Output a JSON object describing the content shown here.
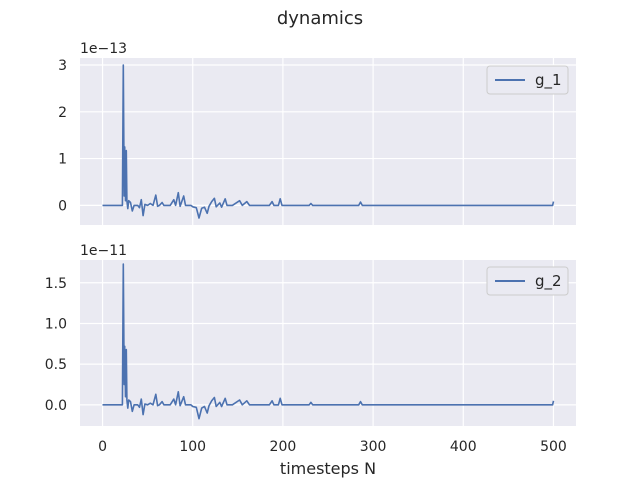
{
  "figure": {
    "title": "dynamics",
    "xlabel": "timesteps N"
  },
  "chart_data": [
    {
      "type": "line",
      "ylabel": "",
      "offset_label": "1e−13",
      "xlim": [
        -25,
        525
      ],
      "ylim": [
        -0.42,
        3.15
      ],
      "x_ticks": [
        0,
        100,
        200,
        300,
        400,
        500
      ],
      "x_tick_labels": [
        "0",
        "100",
        "200",
        "300",
        "400",
        "500"
      ],
      "y_ticks": [
        0,
        1,
        2,
        3
      ],
      "y_tick_labels": [
        "0",
        "1",
        "2",
        "3"
      ],
      "grid": true,
      "legend_position": "top-right",
      "series": [
        {
          "name": "g_1",
          "color": "#4c72b0",
          "points": [
            [
              0,
              0
            ],
            [
              22,
              0
            ],
            [
              23,
              3.0
            ],
            [
              24,
              0.2
            ],
            [
              24.6,
              1.25
            ],
            [
              25.5,
              0.1
            ],
            [
              26.3,
              1.17
            ],
            [
              27,
              0.1
            ],
            [
              28,
              -0.07
            ],
            [
              29,
              0.1
            ],
            [
              31,
              0.06
            ],
            [
              33,
              -0.12
            ],
            [
              35,
              0
            ],
            [
              39,
              0
            ],
            [
              41,
              -0.05
            ],
            [
              43,
              0.12
            ],
            [
              45,
              -0.22
            ],
            [
              47,
              0.02
            ],
            [
              50,
              0
            ],
            [
              53,
              0.04
            ],
            [
              56,
              0
            ],
            [
              59,
              0.22
            ],
            [
              61,
              -0.02
            ],
            [
              63,
              0
            ],
            [
              66,
              0.06
            ],
            [
              68,
              0
            ],
            [
              72,
              0
            ],
            [
              75,
              0
            ],
            [
              79,
              0.12
            ],
            [
              81,
              0
            ],
            [
              84,
              0.27
            ],
            [
              86,
              -0.02
            ],
            [
              90,
              0.2
            ],
            [
              92,
              0
            ],
            [
              98,
              0
            ],
            [
              100,
              -0.03
            ],
            [
              104,
              -0.05
            ],
            [
              107,
              -0.27
            ],
            [
              110,
              -0.06
            ],
            [
              113,
              -0.04
            ],
            [
              116,
              -0.17
            ],
            [
              118,
              -0.02
            ],
            [
              121,
              0.08
            ],
            [
              124,
              0.15
            ],
            [
              126,
              -0.03
            ],
            [
              130,
              0.05
            ],
            [
              132,
              -0.04
            ],
            [
              136,
              0.14
            ],
            [
              138,
              0
            ],
            [
              144,
              0
            ],
            [
              152,
              0.1
            ],
            [
              155,
              0
            ],
            [
              160,
              0.08
            ],
            [
              163,
              0
            ],
            [
              185,
              0
            ],
            [
              188,
              0.08
            ],
            [
              190,
              0
            ],
            [
              195,
              0
            ],
            [
              197,
              0.14
            ],
            [
              199,
              0
            ],
            [
              229,
              0
            ],
            [
              231,
              0.04
            ],
            [
              233,
              0
            ],
            [
              284,
              0
            ],
            [
              286,
              0.07
            ],
            [
              288,
              0
            ],
            [
              499,
              0
            ],
            [
              500,
              0.08
            ]
          ]
        }
      ]
    },
    {
      "type": "line",
      "ylabel": "",
      "offset_label": "1e−11",
      "xlim": [
        -25,
        525
      ],
      "ylim": [
        -0.26,
        1.78
      ],
      "x_ticks": [
        0,
        100,
        200,
        300,
        400,
        500
      ],
      "x_tick_labels": [
        "0",
        "100",
        "200",
        "300",
        "400",
        "500"
      ],
      "y_ticks": [
        0,
        0.5,
        1.0,
        1.5
      ],
      "y_tick_labels": [
        "0.0",
        "0.5",
        "1.0",
        "1.5"
      ],
      "grid": true,
      "legend_position": "top-right",
      "series": [
        {
          "name": "g_2",
          "color": "#4c72b0",
          "points": [
            [
              0,
              0
            ],
            [
              22,
              0
            ],
            [
              23,
              1.73
            ],
            [
              24,
              0.25
            ],
            [
              24.6,
              0.72
            ],
            [
              25.5,
              0.1
            ],
            [
              26.3,
              0.68
            ],
            [
              27,
              0.06
            ],
            [
              28,
              -0.04
            ],
            [
              29,
              0.06
            ],
            [
              31,
              0.04
            ],
            [
              33,
              -0.08
            ],
            [
              35,
              0
            ],
            [
              39,
              0
            ],
            [
              41,
              -0.03
            ],
            [
              43,
              0.07
            ],
            [
              45,
              -0.12
            ],
            [
              47,
              0.01
            ],
            [
              50,
              0
            ],
            [
              53,
              0.02
            ],
            [
              56,
              0
            ],
            [
              59,
              0.13
            ],
            [
              61,
              -0.01
            ],
            [
              63,
              0
            ],
            [
              66,
              0.04
            ],
            [
              68,
              0
            ],
            [
              72,
              0
            ],
            [
              75,
              0
            ],
            [
              79,
              0.07
            ],
            [
              81,
              0
            ],
            [
              84,
              0.16
            ],
            [
              86,
              -0.01
            ],
            [
              90,
              0.1
            ],
            [
              92,
              0
            ],
            [
              98,
              0
            ],
            [
              100,
              -0.02
            ],
            [
              104,
              -0.03
            ],
            [
              107,
              -0.17
            ],
            [
              110,
              -0.04
            ],
            [
              113,
              -0.02
            ],
            [
              116,
              -0.1
            ],
            [
              118,
              -0.01
            ],
            [
              121,
              0.05
            ],
            [
              124,
              0.09
            ],
            [
              126,
              -0.02
            ],
            [
              130,
              0.03
            ],
            [
              132,
              -0.02
            ],
            [
              136,
              0.08
            ],
            [
              138,
              0
            ],
            [
              144,
              0
            ],
            [
              152,
              0.06
            ],
            [
              155,
              0
            ],
            [
              160,
              0.05
            ],
            [
              163,
              0
            ],
            [
              185,
              0
            ],
            [
              188,
              0.05
            ],
            [
              190,
              0
            ],
            [
              195,
              0
            ],
            [
              197,
              0.08
            ],
            [
              199,
              0
            ],
            [
              229,
              0
            ],
            [
              231,
              0.03
            ],
            [
              233,
              0
            ],
            [
              284,
              0
            ],
            [
              286,
              0.04
            ],
            [
              288,
              0
            ],
            [
              499,
              0
            ],
            [
              500,
              0.05
            ]
          ]
        }
      ]
    }
  ]
}
